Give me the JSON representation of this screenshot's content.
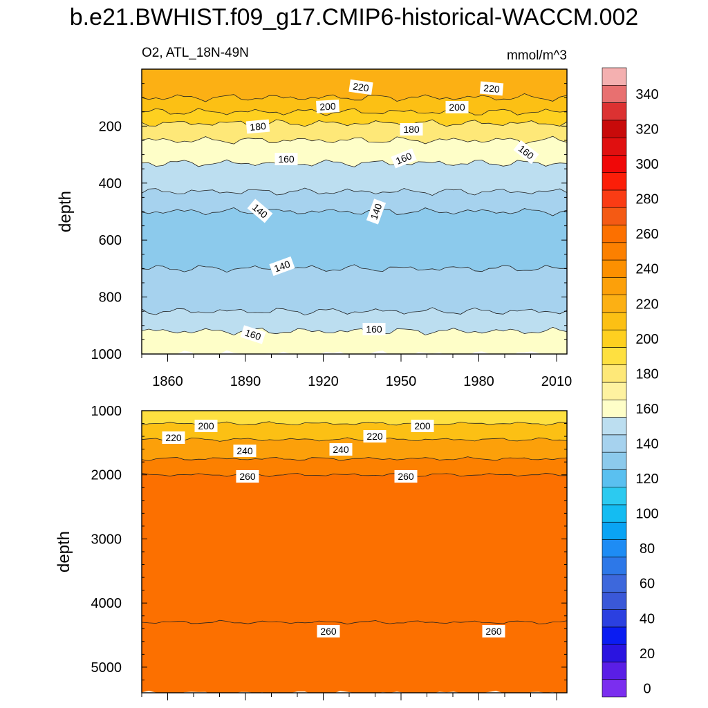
{
  "figure": {
    "title": "b.e21.BWHIST.f09_g17.CMIP6-historical-WACCM.002",
    "variable_region": "O2, ATL_18N-49N",
    "units": "mmol/m^3",
    "ylabel": "depth"
  },
  "chart_data": [
    {
      "type": "contour",
      "panel": "upper",
      "title": "O2, ATL_18N-49N",
      "units": "mmol/m^3",
      "ylabel": "depth",
      "xlabel": "",
      "xlim": [
        1850,
        2014
      ],
      "ylim": [
        1000,
        0
      ],
      "x_ticks": [
        "1860",
        "1890",
        "1920",
        "1950",
        "1980",
        "2010"
      ],
      "y_ticks": [
        "200",
        "400",
        "600",
        "800",
        "1000"
      ],
      "contour_interval": 10,
      "contour_labels": [
        "220",
        "220",
        "200",
        "200",
        "180",
        "180",
        "160",
        "160",
        "160",
        "140",
        "140",
        "140",
        "160",
        "160"
      ],
      "bands": [
        {
          "from_depth": 50,
          "to_depth": 100,
          "value": 225
        },
        {
          "from_depth": 100,
          "to_depth": 150,
          "value": 215
        },
        {
          "from_depth": 150,
          "to_depth": 190,
          "value": 205
        },
        {
          "from_depth": 190,
          "to_depth": 250,
          "value": 185
        },
        {
          "from_depth": 250,
          "to_depth": 330,
          "value": 165
        },
        {
          "from_depth": 330,
          "to_depth": 430,
          "value": 155
        },
        {
          "from_depth": 430,
          "to_depth": 500,
          "value": 145
        },
        {
          "from_depth": 500,
          "to_depth": 700,
          "value": 135
        },
        {
          "from_depth": 700,
          "to_depth": 850,
          "value": 145
        },
        {
          "from_depth": 850,
          "to_depth": 920,
          "value": 155
        },
        {
          "from_depth": 920,
          "to_depth": 1000,
          "value": 165
        }
      ]
    },
    {
      "type": "contour",
      "panel": "lower",
      "title": "",
      "ylabel": "depth",
      "xlabel": "",
      "xlim": [
        1850,
        2014
      ],
      "ylim": [
        5400,
        1000
      ],
      "y_ticks": [
        "1000",
        "2000",
        "3000",
        "4000",
        "5000"
      ],
      "contour_interval": 10,
      "contour_labels": [
        "200",
        "200",
        "220",
        "220",
        "240",
        "240",
        "260",
        "260",
        "260",
        "260"
      ],
      "bands": [
        {
          "from_depth": 1000,
          "to_depth": 1200,
          "value": 195
        },
        {
          "from_depth": 1200,
          "to_depth": 1450,
          "value": 215
        },
        {
          "from_depth": 1450,
          "to_depth": 1750,
          "value": 235
        },
        {
          "from_depth": 1750,
          "to_depth": 2000,
          "value": 250
        },
        {
          "from_depth": 2000,
          "to_depth": 4300,
          "value": 265
        },
        {
          "from_depth": 4300,
          "to_depth": 5400,
          "value": 260
        }
      ]
    }
  ],
  "colorbar": {
    "ticks": [
      "340",
      "320",
      "300",
      "280",
      "260",
      "240",
      "220",
      "200",
      "180",
      "160",
      "140",
      "120",
      "100",
      "80",
      "60",
      "40",
      "20",
      "0"
    ],
    "colors": [
      "#7b2eef",
      "#5a1ee6",
      "#2a14e0",
      "#0a1cf2",
      "#2b40e0",
      "#3a58d8",
      "#3d68dc",
      "#2d78e8",
      "#1e8cf4",
      "#0aa4f4",
      "#14bcf2",
      "#2ccaf0",
      "#5ac0f0",
      "#8ccaec",
      "#a6d2ee",
      "#bcdef0",
      "#fefec8",
      "#fef2a0",
      "#fee878",
      "#fee040",
      "#fed020",
      "#fcc014",
      "#fcb014",
      "#fca00a",
      "#fc9000",
      "#fc8000",
      "#fc7000",
      "#f45a14",
      "#fa3c14",
      "#fc1e08",
      "#f00808",
      "#e01010",
      "#c80a0a",
      "#dc3232",
      "#e87070",
      "#f4b0b0"
    ]
  }
}
